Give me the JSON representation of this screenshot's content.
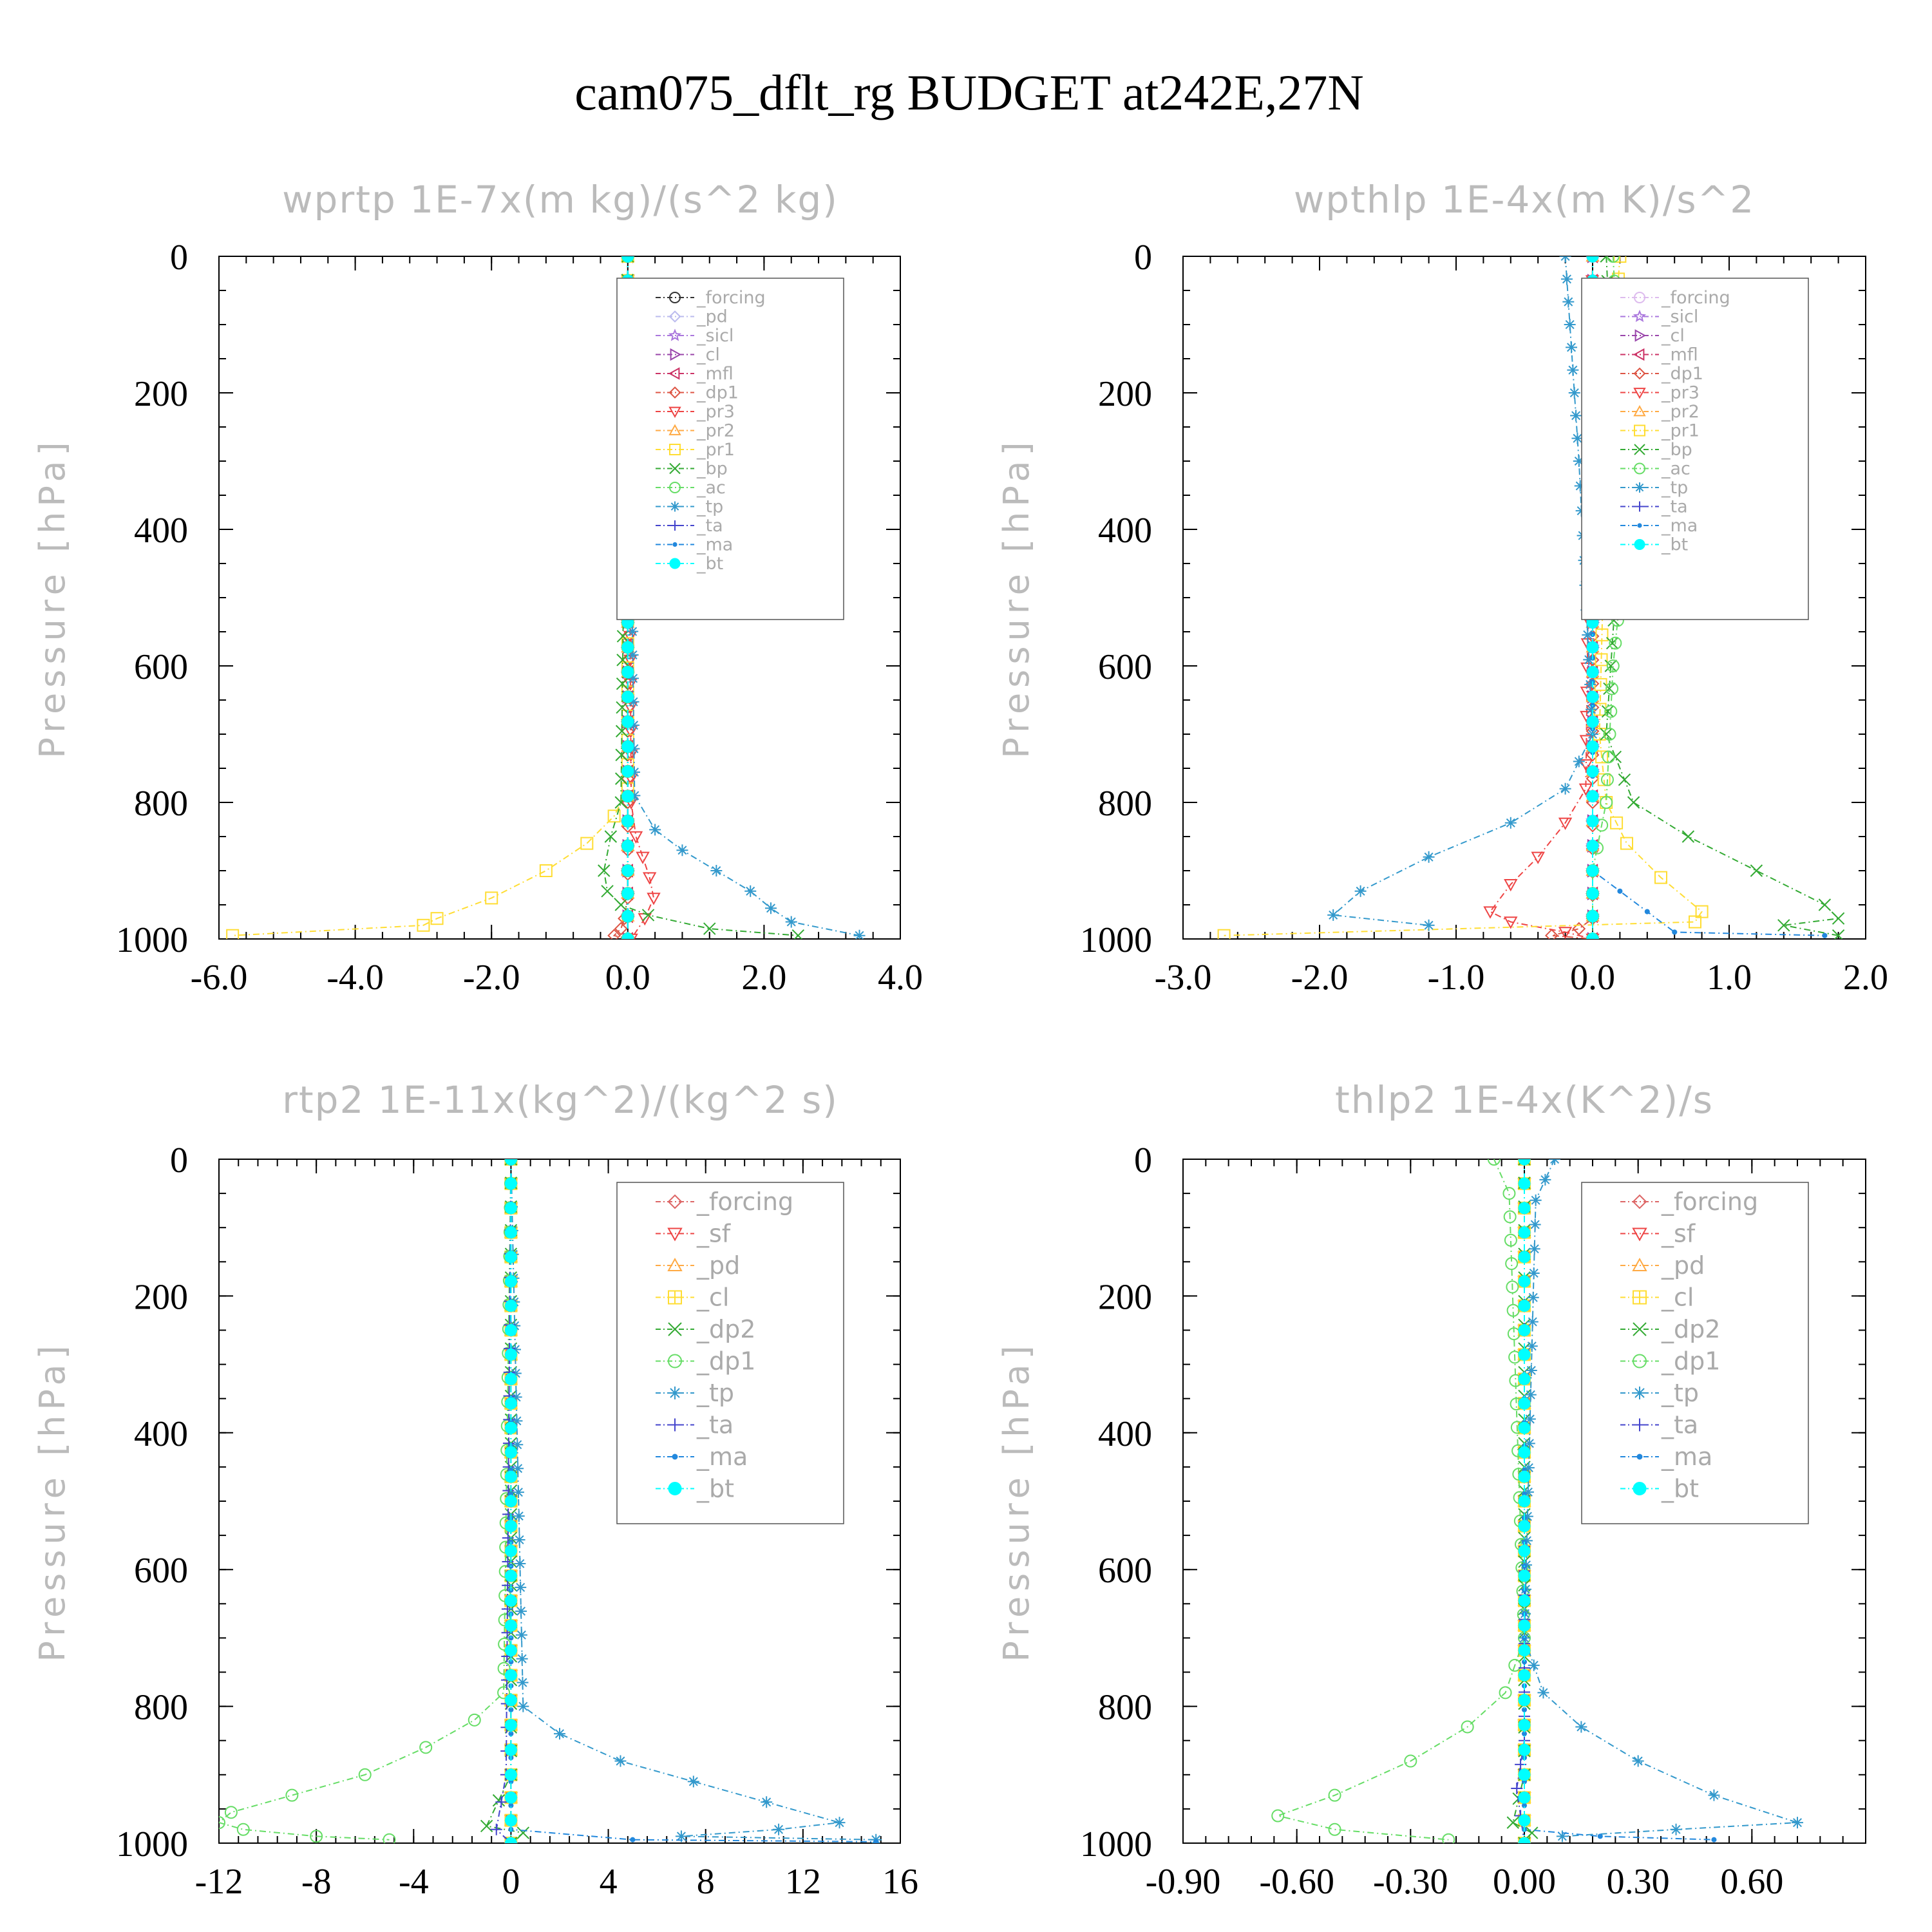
{
  "title": "cam075_dflt_rg  BUDGET at242E,27N",
  "chart_data": [
    {
      "type": "line",
      "title": "wprtp   1E-7x(m kg)/(s^2 kg)",
      "ylabel": "Pressure [hPa]",
      "xlim": [
        -6.0,
        4.0
      ],
      "ylim": [
        0,
        1000
      ],
      "y_inverted": true,
      "xticks": [
        "-6.0",
        "-4.0",
        "-2.0",
        "0.0",
        "2.0",
        "4.0"
      ],
      "yticks": [
        "0",
        "200",
        "400",
        "600",
        "800",
        "1000"
      ],
      "legend_location": "upper-right",
      "series": [
        {
          "name": "_forcing",
          "color": "#333333",
          "marker": "circle",
          "x": [
            0,
            0,
            0,
            0
          ],
          "y": [
            0,
            500,
            900,
            1000
          ]
        },
        {
          "name": "_pd",
          "color": "#bbbbee",
          "marker": "diamond",
          "x": [
            0,
            0,
            0,
            0
          ],
          "y": [
            0,
            500,
            900,
            1000
          ]
        },
        {
          "name": "_sicl",
          "color": "#aa77dd",
          "marker": "star",
          "x": [
            0,
            0,
            0,
            0
          ],
          "y": [
            0,
            500,
            900,
            1000
          ]
        },
        {
          "name": "_cl",
          "color": "#9944aa",
          "marker": "triangle-right",
          "x": [
            0,
            0,
            0,
            0
          ],
          "y": [
            0,
            500,
            900,
            1000
          ]
        },
        {
          "name": "_mfl",
          "color": "#cc3366",
          "marker": "triangle-left",
          "x": [
            0,
            0,
            0,
            0
          ],
          "y": [
            0,
            500,
            900,
            1000
          ]
        },
        {
          "name": "_dp1",
          "color": "#dd5544",
          "marker": "diamond",
          "x": [
            0,
            0,
            0,
            -0.05,
            -0.1,
            -0.2,
            0
          ],
          "y": [
            0,
            800,
            940,
            970,
            985,
            995,
            1000
          ]
        },
        {
          "name": "_pr3",
          "color": "#ee4444",
          "marker": "triangle-down",
          "x": [
            0,
            0.05,
            0.12,
            0.22,
            0.32,
            0.38,
            0.25,
            0.05
          ],
          "y": [
            0,
            800,
            850,
            880,
            910,
            940,
            970,
            1000
          ]
        },
        {
          "name": "_pr2",
          "color": "#ffaa44",
          "marker": "triangle-up",
          "x": [
            0,
            0,
            0,
            0
          ],
          "y": [
            0,
            500,
            900,
            1000
          ]
        },
        {
          "name": "_pr1",
          "color": "#ffdd33",
          "marker": "square",
          "x": [
            0,
            0,
            -0.2,
            -0.6,
            -1.2,
            -2.0,
            -2.8,
            -3.0,
            -5.8
          ],
          "y": [
            0,
            780,
            820,
            860,
            900,
            940,
            970,
            980,
            995
          ]
        },
        {
          "name": "_bp",
          "color": "#33aa33",
          "marker": "cross",
          "x": [
            0,
            -0.1,
            -0.25,
            -0.35,
            -0.3,
            -0.1,
            0.3,
            1.2,
            2.5
          ],
          "y": [
            0,
            800,
            850,
            900,
            930,
            950,
            965,
            985,
            995
          ]
        },
        {
          "name": "_ac",
          "color": "#66dd66",
          "marker": "circle",
          "x": [
            0,
            0,
            0,
            0
          ],
          "y": [
            0,
            500,
            900,
            1000
          ]
        },
        {
          "name": "_tp",
          "color": "#3399cc",
          "marker": "asterisk",
          "x": [
            0,
            0.1,
            0.4,
            0.8,
            1.3,
            1.8,
            2.1,
            2.4,
            3.4
          ],
          "y": [
            0,
            790,
            840,
            870,
            900,
            930,
            955,
            975,
            995
          ]
        },
        {
          "name": "_ta",
          "color": "#4444cc",
          "marker": "plus",
          "x": [
            0,
            0,
            0,
            0
          ],
          "y": [
            0,
            500,
            900,
            1000
          ]
        },
        {
          "name": "_ma",
          "color": "#2288dd",
          "marker": "dot",
          "x": [
            0,
            0,
            0,
            0
          ],
          "y": [
            0,
            500,
            900,
            1000
          ]
        },
        {
          "name": "_bt",
          "color": "#00ffff",
          "marker": "filled-circle",
          "x": [
            0,
            0,
            0,
            0
          ],
          "y": [
            0,
            500,
            900,
            1000
          ]
        }
      ]
    },
    {
      "type": "line",
      "title": "wpthlp   1E-4x(m K)/s^2",
      "ylabel": "Pressure [hPa]",
      "xlim": [
        -3.0,
        2.0
      ],
      "ylim": [
        0,
        1000
      ],
      "y_inverted": true,
      "xticks": [
        "-3.0",
        "-2.0",
        "-1.0",
        "0.0",
        "1.0",
        "2.0"
      ],
      "yticks": [
        "0",
        "200",
        "400",
        "600",
        "800",
        "1000"
      ],
      "legend_location": "upper-right",
      "series": [
        {
          "name": "_forcing",
          "color": "#ddbbee",
          "marker": "circle",
          "x": [
            0,
            0,
            0,
            0
          ],
          "y": [
            0,
            500,
            900,
            1000
          ]
        },
        {
          "name": "_sicl",
          "color": "#aa77dd",
          "marker": "star",
          "x": [
            0,
            0,
            0,
            0
          ],
          "y": [
            0,
            500,
            900,
            1000
          ]
        },
        {
          "name": "_cl",
          "color": "#9944aa",
          "marker": "triangle-right",
          "x": [
            0,
            0,
            0,
            0
          ],
          "y": [
            0,
            500,
            900,
            1000
          ]
        },
        {
          "name": "_mfl",
          "color": "#cc3366",
          "marker": "triangle-left",
          "x": [
            0,
            0,
            0,
            0
          ],
          "y": [
            0,
            500,
            900,
            1000
          ]
        },
        {
          "name": "_dp1",
          "color": "#dd5544",
          "marker": "diamond",
          "x": [
            0,
            0,
            0,
            -0.1,
            -0.3,
            0
          ],
          "y": [
            0,
            800,
            970,
            985,
            995,
            1000
          ]
        },
        {
          "name": "_pr3",
          "color": "#ee4444",
          "marker": "triangle-down",
          "x": [
            0,
            -0.05,
            -0.2,
            -0.4,
            -0.6,
            -0.75,
            -0.6,
            -0.2,
            0
          ],
          "y": [
            0,
            780,
            830,
            880,
            920,
            960,
            975,
            990,
            1000
          ]
        },
        {
          "name": "_pr2",
          "color": "#ffaa44",
          "marker": "triangle-up",
          "x": [
            0,
            0,
            0,
            0
          ],
          "y": [
            0,
            500,
            900,
            1000
          ]
        },
        {
          "name": "_pr1",
          "color": "#ffdd33",
          "marker": "square",
          "x": [
            0.2,
            0.1,
            0.05,
            0.1,
            0.25,
            0.5,
            0.8,
            0.75,
            -2.7
          ],
          "y": [
            0,
            300,
            700,
            800,
            860,
            910,
            960,
            975,
            995
          ]
        },
        {
          "name": "_bp",
          "color": "#33aa33",
          "marker": "cross",
          "x": [
            0.1,
            0.2,
            0.1,
            0.3,
            0.7,
            1.2,
            1.7,
            1.8,
            1.4,
            1.8
          ],
          "y": [
            0,
            400,
            700,
            800,
            850,
            900,
            950,
            970,
            980,
            995
          ]
        },
        {
          "name": "_ac",
          "color": "#66dd66",
          "marker": "circle",
          "x": [
            0.15,
            0.25,
            0.15,
            0.1,
            0,
            0
          ],
          "y": [
            0,
            400,
            600,
            800,
            900,
            1000
          ]
        },
        {
          "name": "_tp",
          "color": "#3399cc",
          "marker": "asterisk",
          "x": [
            -0.2,
            -0.1,
            0,
            -0.2,
            -0.6,
            -1.2,
            -1.7,
            -1.9,
            -1.2
          ],
          "y": [
            0,
            300,
            700,
            780,
            830,
            880,
            930,
            965,
            980
          ]
        },
        {
          "name": "_ta",
          "color": "#4444cc",
          "marker": "plus",
          "x": [
            0,
            0,
            0,
            0
          ],
          "y": [
            0,
            500,
            900,
            1000
          ]
        },
        {
          "name": "_ma",
          "color": "#2288dd",
          "marker": "dot",
          "x": [
            0,
            0,
            0.6,
            1.7
          ],
          "y": [
            0,
            900,
            990,
            995
          ]
        },
        {
          "name": "_bt",
          "color": "#00ffff",
          "marker": "filled-circle",
          "x": [
            0,
            0,
            0,
            0
          ],
          "y": [
            0,
            500,
            900,
            1000
          ]
        }
      ]
    },
    {
      "type": "line",
      "title": "rtp2   1E-11x(kg^2)/(kg^2 s)",
      "ylabel": "Pressure [hPa]",
      "xlim": [
        -12,
        16
      ],
      "ylim": [
        0,
        1000
      ],
      "y_inverted": true,
      "xticks": [
        "-12",
        "-8",
        "-4",
        "0",
        "4",
        "8",
        "12",
        "16"
      ],
      "yticks": [
        "0",
        "200",
        "400",
        "600",
        "800",
        "1000"
      ],
      "legend_location": "upper-right",
      "series": [
        {
          "name": "_forcing",
          "color": "#dd6666",
          "marker": "diamond",
          "x": [
            0,
            0,
            0,
            0
          ],
          "y": [
            0,
            500,
            900,
            1000
          ]
        },
        {
          "name": "_sf",
          "color": "#ee4444",
          "marker": "triangle-down",
          "x": [
            0,
            0,
            0,
            0
          ],
          "y": [
            0,
            500,
            900,
            1000
          ]
        },
        {
          "name": "_pd",
          "color": "#ffaa44",
          "marker": "triangle-up",
          "x": [
            0,
            0,
            0,
            0
          ],
          "y": [
            0,
            500,
            900,
            1000
          ]
        },
        {
          "name": "_cl",
          "color": "#ffdd33",
          "marker": "square-plus",
          "x": [
            0,
            0,
            0,
            0
          ],
          "y": [
            0,
            500,
            900,
            1000
          ]
        },
        {
          "name": "_dp2",
          "color": "#33aa33",
          "marker": "cross",
          "x": [
            0,
            0,
            -1,
            0.5,
            0
          ],
          "y": [
            0,
            900,
            975,
            985,
            1000
          ]
        },
        {
          "name": "_dp1",
          "color": "#66dd66",
          "marker": "circle",
          "x": [
            0,
            -0.3,
            -1.5,
            -3.5,
            -6,
            -9,
            -11.5,
            -12,
            -11,
            -8,
            -5
          ],
          "y": [
            0,
            780,
            820,
            860,
            900,
            930,
            955,
            970,
            980,
            990,
            995
          ]
        },
        {
          "name": "_tp",
          "color": "#3399cc",
          "marker": "asterisk",
          "x": [
            0,
            0.5,
            2,
            4.5,
            7.5,
            10.5,
            13.5,
            11,
            7,
            15
          ],
          "y": [
            0,
            800,
            840,
            880,
            910,
            940,
            970,
            980,
            990,
            995
          ]
        },
        {
          "name": "_ta",
          "color": "#4444cc",
          "marker": "plus",
          "x": [
            0,
            -0.2,
            -0.6,
            0
          ],
          "y": [
            0,
            900,
            980,
            1000
          ]
        },
        {
          "name": "_ma",
          "color": "#2288dd",
          "marker": "dot",
          "x": [
            0,
            0,
            5,
            15
          ],
          "y": [
            0,
            980,
            995,
            998
          ]
        },
        {
          "name": "_bt",
          "color": "#00ffff",
          "marker": "filled-circle",
          "x": [
            0,
            0,
            0,
            0
          ],
          "y": [
            0,
            500,
            900,
            1000
          ]
        }
      ]
    },
    {
      "type": "line",
      "title": "thlp2   1E-4x(K^2)/s",
      "ylabel": "Pressure [hPa]",
      "xlim": [
        -0.9,
        0.9
      ],
      "ylim": [
        0,
        1000
      ],
      "y_inverted": true,
      "xticks": [
        "-0.90",
        "-0.60",
        "-0.30",
        "0.00",
        "0.30",
        "0.60"
      ],
      "yticks": [
        "0",
        "200",
        "400",
        "600",
        "800",
        "1000"
      ],
      "legend_location": "upper-right",
      "series": [
        {
          "name": "_forcing",
          "color": "#dd6666",
          "marker": "diamond",
          "x": [
            0,
            0,
            0,
            0
          ],
          "y": [
            0,
            500,
            900,
            1000
          ]
        },
        {
          "name": "_sf",
          "color": "#ee4444",
          "marker": "triangle-down",
          "x": [
            0,
            0,
            0,
            0
          ],
          "y": [
            0,
            500,
            900,
            1000
          ]
        },
        {
          "name": "_pd",
          "color": "#ffaa44",
          "marker": "triangle-up",
          "x": [
            0,
            0,
            0,
            0
          ],
          "y": [
            0,
            500,
            900,
            1000
          ]
        },
        {
          "name": "_cl",
          "color": "#ffdd33",
          "marker": "square-plus",
          "x": [
            0,
            0,
            0,
            0
          ],
          "y": [
            0,
            500,
            900,
            1000
          ]
        },
        {
          "name": "_dp2",
          "color": "#33aa33",
          "marker": "cross",
          "x": [
            0,
            0,
            -0.03,
            0.02,
            0
          ],
          "y": [
            0,
            900,
            970,
            985,
            1000
          ]
        },
        {
          "name": "_dp1",
          "color": "#66dd66",
          "marker": "circle",
          "x": [
            -0.08,
            -0.04,
            0,
            -0.05,
            -0.15,
            -0.3,
            -0.5,
            -0.65,
            -0.5,
            -0.2
          ],
          "y": [
            0,
            50,
            700,
            780,
            830,
            880,
            930,
            960,
            980,
            995
          ]
        },
        {
          "name": "_tp",
          "color": "#3399cc",
          "marker": "asterisk",
          "x": [
            0.08,
            0.03,
            0,
            0.05,
            0.15,
            0.3,
            0.5,
            0.72,
            0.4,
            0.1
          ],
          "y": [
            0,
            60,
            700,
            780,
            830,
            880,
            930,
            970,
            980,
            990
          ]
        },
        {
          "name": "_ta",
          "color": "#4444cc",
          "marker": "plus",
          "x": [
            0,
            0,
            -0.02,
            0
          ],
          "y": [
            0,
            850,
            920,
            1000
          ]
        },
        {
          "name": "_ma",
          "color": "#2288dd",
          "marker": "dot",
          "x": [
            0,
            0,
            0.2,
            0.5
          ],
          "y": [
            0,
            980,
            990,
            995
          ]
        },
        {
          "name": "_bt",
          "color": "#00ffff",
          "marker": "filled-circle",
          "x": [
            0,
            0,
            0,
            0
          ],
          "y": [
            0,
            500,
            900,
            1000
          ]
        }
      ]
    }
  ]
}
